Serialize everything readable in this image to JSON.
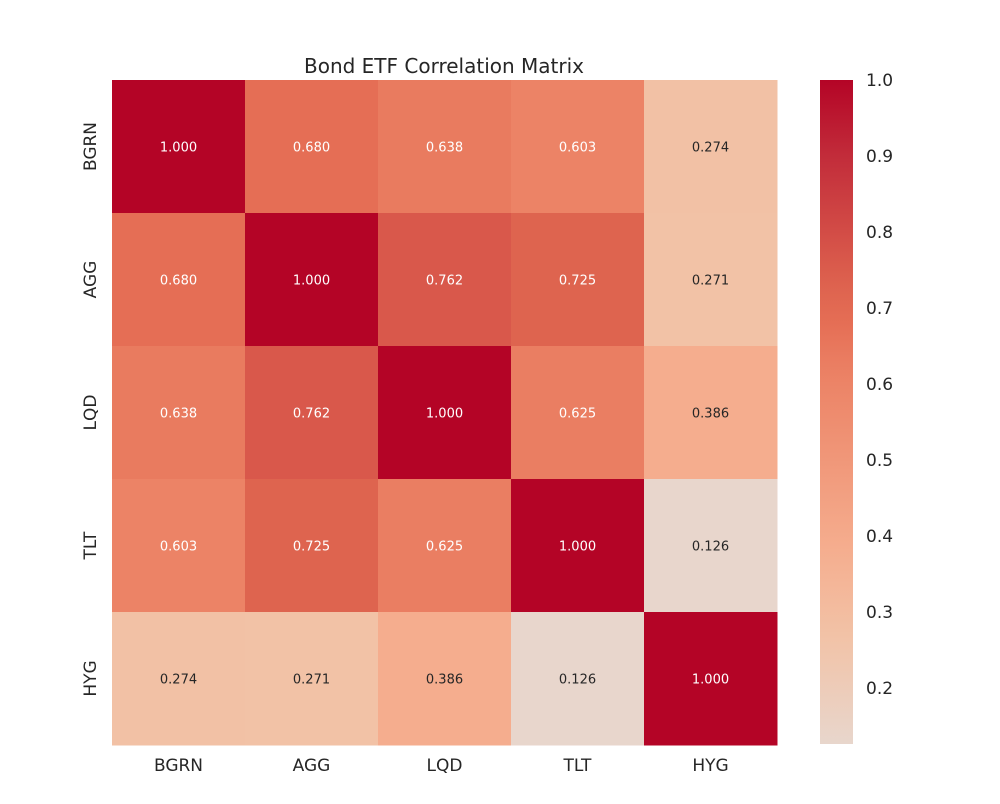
{
  "chart_data": {
    "type": "heatmap",
    "title": "Bond ETF Correlation Matrix",
    "rows": [
      "BGRN",
      "AGG",
      "LQD",
      "TLT",
      "HYG"
    ],
    "columns": [
      "BGRN",
      "AGG",
      "LQD",
      "TLT",
      "HYG"
    ],
    "values": [
      [
        1.0,
        0.68,
        0.638,
        0.603,
        0.274
      ],
      [
        0.68,
        1.0,
        0.762,
        0.725,
        0.271
      ],
      [
        0.638,
        0.762,
        1.0,
        0.625,
        0.386
      ],
      [
        0.603,
        0.725,
        0.625,
        1.0,
        0.126
      ],
      [
        0.274,
        0.271,
        0.386,
        0.126,
        1.0
      ]
    ],
    "annotation_format": "3 decimals",
    "colorbar": {
      "min": 0.126,
      "max": 1.0,
      "ticks": [
        0.2,
        0.3,
        0.4,
        0.5,
        0.6,
        0.7,
        0.8,
        0.9,
        1.0
      ],
      "tick_labels": [
        "0.2",
        "0.3",
        "0.4",
        "0.5",
        "0.6",
        "0.7",
        "0.8",
        "0.9",
        "1.0"
      ]
    },
    "colormap": {
      "name": "coolwarm (upper half)",
      "stops": [
        {
          "v": 0.126,
          "color": "#e8d6cc"
        },
        {
          "v": 0.27,
          "color": "#f2c2a6"
        },
        {
          "v": 0.39,
          "color": "#f5ac8d"
        },
        {
          "v": 0.6,
          "color": "#ec8467"
        },
        {
          "v": 0.64,
          "color": "#e97a5f"
        },
        {
          "v": 0.68,
          "color": "#e56e55"
        },
        {
          "v": 0.72,
          "color": "#df6550"
        },
        {
          "v": 0.76,
          "color": "#d9594b"
        },
        {
          "v": 0.9,
          "color": "#c22c3a"
        },
        {
          "v": 1.0,
          "color": "#b40426"
        }
      ]
    },
    "text_colors": {
      "dark": "#262626",
      "light": "#ffffff",
      "light_threshold": 0.5
    },
    "grid": false,
    "legend": "colorbar-right"
  }
}
